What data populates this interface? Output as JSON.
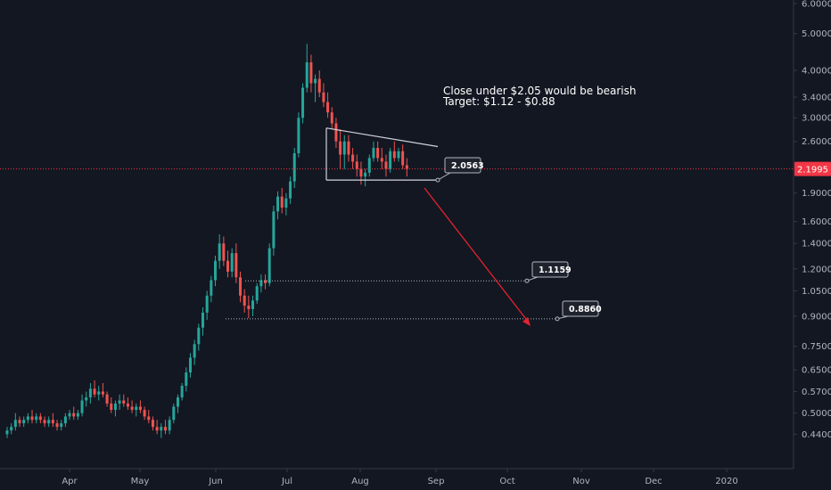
{
  "chart_data": {
    "type": "candlestick",
    "y_scale": "log",
    "ylim": [
      0.4,
      6.0
    ],
    "x_axis_labels": [
      "Apr",
      "May",
      "Jun",
      "Jul",
      "Aug",
      "Sep",
      "Oct",
      "Nov",
      "Dec",
      "2020"
    ],
    "y_ticks": [
      {
        "value": 6.0,
        "label": "6.0000"
      },
      {
        "value": 5.0,
        "label": "5.0000"
      },
      {
        "value": 4.0,
        "label": "4.0000"
      },
      {
        "value": 3.4,
        "label": "3.4000"
      },
      {
        "value": 3.0,
        "label": "3.0000"
      },
      {
        "value": 2.6,
        "label": "2.6000"
      },
      {
        "value": 1.9,
        "label": "1.9000"
      },
      {
        "value": 1.6,
        "label": "1.6000"
      },
      {
        "value": 1.4,
        "label": "1.4000"
      },
      {
        "value": 1.2,
        "label": "1.2000"
      },
      {
        "value": 1.05,
        "label": "1.0500"
      },
      {
        "value": 0.9,
        "label": "0.9000"
      },
      {
        "value": 0.75,
        "label": "0.7500"
      },
      {
        "value": 0.65,
        "label": "0.6500"
      },
      {
        "value": 0.57,
        "label": "0.5700"
      },
      {
        "value": 0.5,
        "label": "0.5000"
      },
      {
        "value": 0.44,
        "label": "0.4400"
      }
    ],
    "current_price": {
      "value": 2.1995,
      "label": "2.1995"
    },
    "annotation": {
      "line1": "Close under $2.05 would be bearish",
      "line2": "Target: $1.12 - $0.88"
    },
    "levels": [
      {
        "value": 2.0563,
        "label": "2.0563"
      },
      {
        "value": 1.1159,
        "label": "1.1159"
      },
      {
        "value": 0.886,
        "label": "0.8860"
      }
    ],
    "triangle": {
      "top_start": 2.82,
      "top_end": 2.52,
      "bottom": 2.0563
    },
    "candles": [
      [
        0.44,
        0.46,
        0.43,
        0.45
      ],
      [
        0.45,
        0.47,
        0.44,
        0.46
      ],
      [
        0.46,
        0.5,
        0.45,
        0.48
      ],
      [
        0.48,
        0.49,
        0.46,
        0.47
      ],
      [
        0.47,
        0.49,
        0.46,
        0.48
      ],
      [
        0.48,
        0.5,
        0.47,
        0.49
      ],
      [
        0.49,
        0.51,
        0.47,
        0.48
      ],
      [
        0.48,
        0.5,
        0.47,
        0.49
      ],
      [
        0.49,
        0.5,
        0.47,
        0.48
      ],
      [
        0.48,
        0.49,
        0.46,
        0.47
      ],
      [
        0.47,
        0.49,
        0.46,
        0.48
      ],
      [
        0.48,
        0.5,
        0.46,
        0.47
      ],
      [
        0.47,
        0.48,
        0.45,
        0.46
      ],
      [
        0.46,
        0.48,
        0.45,
        0.47
      ],
      [
        0.47,
        0.5,
        0.46,
        0.49
      ],
      [
        0.49,
        0.51,
        0.48,
        0.5
      ],
      [
        0.5,
        0.52,
        0.48,
        0.49
      ],
      [
        0.49,
        0.51,
        0.48,
        0.5
      ],
      [
        0.5,
        0.56,
        0.49,
        0.54
      ],
      [
        0.54,
        0.57,
        0.52,
        0.55
      ],
      [
        0.55,
        0.6,
        0.53,
        0.58
      ],
      [
        0.58,
        0.61,
        0.55,
        0.56
      ],
      [
        0.56,
        0.59,
        0.54,
        0.57
      ],
      [
        0.57,
        0.6,
        0.55,
        0.56
      ],
      [
        0.56,
        0.57,
        0.52,
        0.53
      ],
      [
        0.53,
        0.55,
        0.5,
        0.51
      ],
      [
        0.51,
        0.54,
        0.49,
        0.53
      ],
      [
        0.53,
        0.56,
        0.51,
        0.54
      ],
      [
        0.54,
        0.56,
        0.52,
        0.53
      ],
      [
        0.53,
        0.55,
        0.51,
        0.52
      ],
      [
        0.52,
        0.54,
        0.5,
        0.51
      ],
      [
        0.51,
        0.53,
        0.49,
        0.52
      ],
      [
        0.52,
        0.54,
        0.5,
        0.51
      ],
      [
        0.51,
        0.52,
        0.48,
        0.49
      ],
      [
        0.49,
        0.51,
        0.47,
        0.48
      ],
      [
        0.48,
        0.49,
        0.45,
        0.46
      ],
      [
        0.46,
        0.48,
        0.44,
        0.45
      ],
      [
        0.45,
        0.47,
        0.43,
        0.46
      ],
      [
        0.46,
        0.48,
        0.44,
        0.45
      ],
      [
        0.45,
        0.49,
        0.44,
        0.48
      ],
      [
        0.48,
        0.53,
        0.47,
        0.52
      ],
      [
        0.52,
        0.56,
        0.5,
        0.55
      ],
      [
        0.55,
        0.6,
        0.54,
        0.59
      ],
      [
        0.59,
        0.66,
        0.57,
        0.64
      ],
      [
        0.64,
        0.72,
        0.62,
        0.7
      ],
      [
        0.7,
        0.78,
        0.67,
        0.76
      ],
      [
        0.76,
        0.86,
        0.73,
        0.84
      ],
      [
        0.84,
        0.95,
        0.8,
        0.92
      ],
      [
        0.92,
        1.05,
        0.88,
        1.02
      ],
      [
        1.02,
        1.15,
        0.98,
        1.12
      ],
      [
        1.12,
        1.3,
        1.08,
        1.26
      ],
      [
        1.26,
        1.48,
        1.2,
        1.4
      ],
      [
        1.4,
        1.46,
        1.22,
        1.26
      ],
      [
        1.26,
        1.34,
        1.14,
        1.18
      ],
      [
        1.18,
        1.36,
        1.14,
        1.32
      ],
      [
        1.32,
        1.4,
        1.1,
        1.14
      ],
      [
        1.14,
        1.18,
        0.98,
        1.02
      ],
      [
        1.02,
        1.06,
        0.92,
        0.96
      ],
      [
        0.96,
        1.02,
        0.89,
        0.94
      ],
      [
        0.94,
        1.02,
        0.9,
        0.99
      ],
      [
        0.99,
        1.1,
        0.97,
        1.08
      ],
      [
        1.08,
        1.16,
        1.04,
        1.12
      ],
      [
        1.12,
        1.16,
        1.06,
        1.1
      ],
      [
        1.1,
        1.4,
        1.08,
        1.36
      ],
      [
        1.36,
        1.76,
        1.3,
        1.7
      ],
      [
        1.7,
        1.92,
        1.62,
        1.86
      ],
      [
        1.86,
        1.96,
        1.68,
        1.74
      ],
      [
        1.74,
        1.9,
        1.66,
        1.84
      ],
      [
        1.84,
        2.1,
        1.78,
        2.04
      ],
      [
        2.04,
        2.5,
        1.96,
        2.42
      ],
      [
        2.42,
        3.1,
        2.36,
        3.0
      ],
      [
        3.0,
        3.7,
        2.9,
        3.6
      ],
      [
        3.6,
        4.7,
        3.5,
        4.2
      ],
      [
        4.2,
        4.4,
        3.5,
        3.7
      ],
      [
        3.7,
        3.9,
        3.3,
        3.8
      ],
      [
        3.8,
        4.0,
        3.4,
        3.5
      ],
      [
        3.5,
        3.7,
        3.2,
        3.3
      ],
      [
        3.3,
        3.5,
        3.0,
        3.1
      ],
      [
        3.1,
        3.2,
        2.8,
        2.9
      ],
      [
        2.9,
        3.0,
        2.5,
        2.6
      ],
      [
        2.6,
        2.8,
        2.2,
        2.4
      ],
      [
        2.4,
        2.7,
        2.2,
        2.6
      ],
      [
        2.6,
        2.7,
        2.3,
        2.4
      ],
      [
        2.4,
        2.5,
        2.2,
        2.3
      ],
      [
        2.3,
        2.4,
        2.1,
        2.2
      ],
      [
        2.2,
        2.3,
        2.0,
        2.1
      ],
      [
        2.1,
        2.2,
        1.98,
        2.15
      ],
      [
        2.15,
        2.4,
        2.1,
        2.35
      ],
      [
        2.35,
        2.6,
        2.3,
        2.5
      ],
      [
        2.5,
        2.6,
        2.3,
        2.35
      ],
      [
        2.35,
        2.5,
        2.2,
        2.3
      ],
      [
        2.3,
        2.4,
        2.1,
        2.2
      ],
      [
        2.2,
        2.5,
        2.15,
        2.45
      ],
      [
        2.45,
        2.6,
        2.3,
        2.35
      ],
      [
        2.35,
        2.5,
        2.3,
        2.45
      ],
      [
        2.45,
        2.55,
        2.2,
        2.25
      ],
      [
        2.25,
        2.35,
        2.1,
        2.2
      ]
    ]
  }
}
